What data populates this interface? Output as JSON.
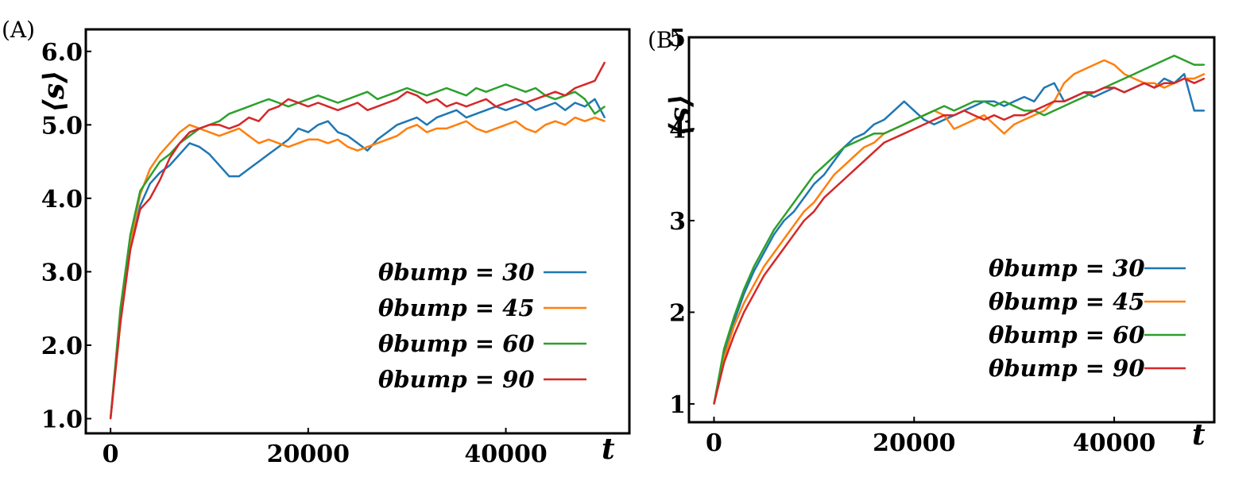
{
  "figure": {
    "panels": [
      {
        "id": "A",
        "label": "(A)"
      },
      {
        "id": "B",
        "label": "(B)"
      }
    ]
  },
  "chart_data": [
    {
      "type": "line",
      "panel": "(A)",
      "title": "",
      "xlabel": "t",
      "ylabel": "⟨s⟩",
      "xlim": [
        -2500,
        52500
      ],
      "ylim": [
        0.8,
        6.3
      ],
      "xticks": [
        0,
        20000,
        40000
      ],
      "xtick_labels": [
        "0",
        "20000",
        "40000"
      ],
      "yticks": [
        1.0,
        2.0,
        3.0,
        4.0,
        5.0,
        6.0
      ],
      "ytick_labels": [
        "1.0",
        "2.0",
        "3.0",
        "4.0",
        "5.0",
        "6.0"
      ],
      "grid": false,
      "legend": "bottom-right",
      "x": [
        0,
        1000,
        2000,
        3000,
        4000,
        5000,
        6000,
        7000,
        8000,
        9000,
        10000,
        11000,
        12000,
        13000,
        14000,
        15000,
        16000,
        17000,
        18000,
        19000,
        20000,
        21000,
        22000,
        23000,
        24000,
        25000,
        26000,
        27000,
        28000,
        29000,
        30000,
        31000,
        32000,
        33000,
        34000,
        35000,
        36000,
        37000,
        38000,
        39000,
        40000,
        41000,
        42000,
        43000,
        44000,
        45000,
        46000,
        47000,
        48000,
        49000,
        50000
      ],
      "series": [
        {
          "name": "θbump = 30",
          "color": "#1f77b4",
          "values": [
            1.0,
            2.4,
            3.3,
            3.9,
            4.2,
            4.35,
            4.45,
            4.6,
            4.75,
            4.7,
            4.6,
            4.45,
            4.3,
            4.3,
            4.4,
            4.5,
            4.6,
            4.7,
            4.8,
            4.95,
            4.9,
            5.0,
            5.05,
            4.9,
            4.85,
            4.75,
            4.65,
            4.8,
            4.9,
            5.0,
            5.05,
            5.1,
            5.0,
            5.1,
            5.15,
            5.2,
            5.1,
            5.15,
            5.2,
            5.25,
            5.2,
            5.25,
            5.3,
            5.2,
            5.25,
            5.3,
            5.2,
            5.3,
            5.25,
            5.35,
            5.1
          ]
        },
        {
          "name": "θbump = 45",
          "color": "#ff7f0e",
          "values": [
            1.0,
            2.3,
            3.4,
            4.05,
            4.4,
            4.6,
            4.75,
            4.9,
            5.0,
            4.95,
            4.9,
            4.85,
            4.9,
            4.95,
            4.85,
            4.75,
            4.8,
            4.75,
            4.7,
            4.75,
            4.8,
            4.8,
            4.75,
            4.8,
            4.7,
            4.65,
            4.7,
            4.75,
            4.8,
            4.85,
            4.95,
            5.0,
            4.9,
            4.95,
            4.95,
            5.0,
            5.05,
            4.95,
            4.9,
            4.95,
            5.0,
            5.05,
            4.95,
            4.9,
            5.0,
            5.05,
            5.0,
            5.1,
            5.05,
            5.1,
            5.05
          ]
        },
        {
          "name": "θbump = 60",
          "color": "#2ca02c",
          "values": [
            1.0,
            2.5,
            3.5,
            4.1,
            4.3,
            4.5,
            4.6,
            4.75,
            4.85,
            4.95,
            5.0,
            5.05,
            5.15,
            5.2,
            5.25,
            5.3,
            5.35,
            5.3,
            5.25,
            5.3,
            5.35,
            5.4,
            5.35,
            5.3,
            5.35,
            5.4,
            5.45,
            5.35,
            5.4,
            5.45,
            5.5,
            5.45,
            5.4,
            5.45,
            5.5,
            5.45,
            5.4,
            5.5,
            5.45,
            5.5,
            5.55,
            5.5,
            5.45,
            5.5,
            5.4,
            5.35,
            5.4,
            5.45,
            5.35,
            5.15,
            5.25
          ]
        },
        {
          "name": "θbump = 90",
          "color": "#d62728",
          "values": [
            1.0,
            2.3,
            3.3,
            3.85,
            4.0,
            4.25,
            4.55,
            4.75,
            4.9,
            4.95,
            5.0,
            5.0,
            4.95,
            5.0,
            5.1,
            5.05,
            5.2,
            5.25,
            5.35,
            5.3,
            5.25,
            5.3,
            5.25,
            5.2,
            5.25,
            5.3,
            5.2,
            5.25,
            5.3,
            5.35,
            5.45,
            5.4,
            5.3,
            5.35,
            5.25,
            5.3,
            5.25,
            5.3,
            5.35,
            5.25,
            5.3,
            5.35,
            5.3,
            5.35,
            5.4,
            5.45,
            5.4,
            5.5,
            5.55,
            5.6,
            5.85
          ]
        }
      ]
    },
    {
      "type": "line",
      "panel": "(B)",
      "title": "",
      "xlabel": "t",
      "ylabel": "⟨s⟩",
      "xlim": [
        -2500,
        50000
      ],
      "ylim": [
        0.8,
        5.0
      ],
      "xticks": [
        0,
        20000,
        40000
      ],
      "xtick_labels": [
        "0",
        "20000",
        "40000"
      ],
      "yticks": [
        1,
        2,
        3,
        4,
        5
      ],
      "ytick_labels": [
        "1",
        "2",
        "3",
        "4",
        "5"
      ],
      "grid": false,
      "legend": "bottom-right",
      "x": [
        0,
        1000,
        2000,
        3000,
        4000,
        5000,
        6000,
        7000,
        8000,
        9000,
        10000,
        11000,
        12000,
        13000,
        14000,
        15000,
        16000,
        17000,
        18000,
        19000,
        20000,
        21000,
        22000,
        23000,
        24000,
        25000,
        26000,
        27000,
        28000,
        29000,
        30000,
        31000,
        32000,
        33000,
        34000,
        35000,
        36000,
        37000,
        38000,
        39000,
        40000,
        41000,
        42000,
        43000,
        44000,
        45000,
        46000,
        47000,
        48000,
        49000
      ],
      "series": [
        {
          "name": "θbump = 30",
          "color": "#1f77b4",
          "values": [
            1.0,
            1.55,
            1.9,
            2.2,
            2.45,
            2.65,
            2.85,
            3.0,
            3.1,
            3.25,
            3.4,
            3.5,
            3.65,
            3.8,
            3.9,
            3.95,
            4.05,
            4.1,
            4.2,
            4.3,
            4.2,
            4.1,
            4.05,
            4.1,
            4.15,
            4.2,
            4.25,
            4.3,
            4.3,
            4.25,
            4.3,
            4.35,
            4.3,
            4.45,
            4.5,
            4.3,
            4.35,
            4.4,
            4.35,
            4.4,
            4.45,
            4.4,
            4.45,
            4.5,
            4.45,
            4.55,
            4.5,
            4.6,
            4.2,
            4.2
          ]
        },
        {
          "name": "θbump = 45",
          "color": "#ff7f0e",
          "values": [
            1.0,
            1.5,
            1.85,
            2.1,
            2.3,
            2.5,
            2.65,
            2.8,
            2.95,
            3.1,
            3.2,
            3.35,
            3.5,
            3.6,
            3.7,
            3.8,
            3.85,
            3.95,
            4.0,
            4.05,
            4.1,
            4.15,
            4.2,
            4.15,
            4.0,
            4.05,
            4.1,
            4.15,
            4.05,
            3.95,
            4.05,
            4.1,
            4.15,
            4.2,
            4.3,
            4.5,
            4.6,
            4.65,
            4.7,
            4.75,
            4.7,
            4.6,
            4.55,
            4.5,
            4.5,
            4.45,
            4.5,
            4.55,
            4.55,
            4.6
          ]
        },
        {
          "name": "θbump = 60",
          "color": "#2ca02c",
          "values": [
            1.0,
            1.6,
            1.95,
            2.25,
            2.5,
            2.7,
            2.9,
            3.05,
            3.2,
            3.35,
            3.5,
            3.6,
            3.7,
            3.8,
            3.85,
            3.9,
            3.95,
            3.95,
            4.0,
            4.05,
            4.1,
            4.15,
            4.2,
            4.25,
            4.2,
            4.25,
            4.3,
            4.3,
            4.25,
            4.3,
            4.25,
            4.2,
            4.2,
            4.15,
            4.2,
            4.25,
            4.3,
            4.35,
            4.4,
            4.45,
            4.5,
            4.55,
            4.6,
            4.65,
            4.7,
            4.75,
            4.8,
            4.75,
            4.7,
            4.7
          ]
        },
        {
          "name": "θbump = 90",
          "color": "#d62728",
          "values": [
            1.0,
            1.45,
            1.75,
            2.0,
            2.2,
            2.4,
            2.55,
            2.7,
            2.85,
            3.0,
            3.1,
            3.25,
            3.35,
            3.45,
            3.55,
            3.65,
            3.75,
            3.85,
            3.9,
            3.95,
            4.0,
            4.05,
            4.1,
            4.15,
            4.15,
            4.2,
            4.15,
            4.1,
            4.15,
            4.1,
            4.15,
            4.15,
            4.2,
            4.25,
            4.3,
            4.3,
            4.35,
            4.4,
            4.4,
            4.45,
            4.45,
            4.4,
            4.45,
            4.5,
            4.45,
            4.5,
            4.5,
            4.55,
            4.5,
            4.55
          ]
        }
      ]
    }
  ]
}
